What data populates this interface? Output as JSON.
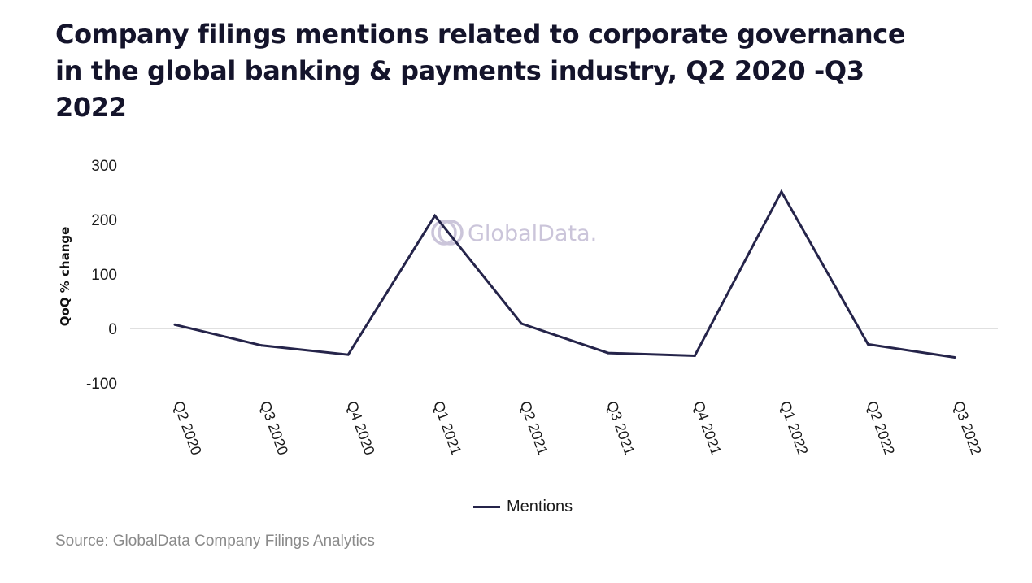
{
  "title": "Company filings mentions related to corporate governance in the global banking & payments industry, Q2 2020 -Q3 2022",
  "watermark": "GlobalData.",
  "source": "Source: GlobalData Company Filings Analytics",
  "colors": {
    "line": "#25244a",
    "title": "#14142b",
    "gridline": "#e0e0e0",
    "watermark": "#cbc5da",
    "source": "#8a8a8a"
  },
  "chart_data": {
    "type": "line",
    "title": "Company filings mentions related to corporate governance in the global banking & payments industry, Q2 2020 -Q3 2022",
    "xlabel": "",
    "ylabel": "QoQ % change",
    "ylim": [
      -100,
      300
    ],
    "yticks": [
      300,
      200,
      100,
      0,
      -100
    ],
    "grid": "zero-line only",
    "legend_position": "bottom-center",
    "categories": [
      "Q2 2020",
      "Q3 2020",
      "Q4 2020",
      "Q1 2021",
      "Q2 2021",
      "Q3 2021",
      "Q4 2021",
      "Q1 2022",
      "Q2 2022",
      "Q3 2022"
    ],
    "series": [
      {
        "name": "Mentions",
        "values": [
          7,
          -31,
          -48,
          207,
          9,
          -45,
          -50,
          251,
          -29,
          -53
        ]
      }
    ]
  }
}
